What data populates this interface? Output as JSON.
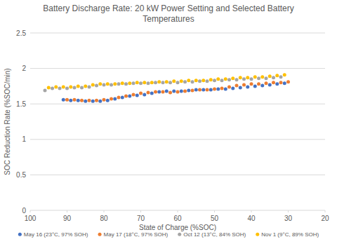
{
  "chart_data": {
    "type": "scatter",
    "title": "Battery Discharge Rate: 20 kW Power Setting and Selected Battery Temperatures",
    "x_label": "State of Charge (%SOC)",
    "y_label": "SOC Reduction Rate (%SOC/min)",
    "xlim": [
      100,
      20
    ],
    "xticks": [
      100,
      90,
      80,
      70,
      60,
      50,
      40,
      30,
      20
    ],
    "ylim": [
      0,
      2.5
    ],
    "yticks": [
      0,
      0.5,
      1,
      1.5,
      2,
      2.5
    ],
    "grid": true,
    "legend": "bottom",
    "marker": "circle",
    "series": [
      {
        "name": "May 16 (23°C, 97% SOH)",
        "color": "#4472c4",
        "x": [
          91,
          89,
          87,
          85,
          83,
          81,
          79,
          77,
          75,
          73,
          71,
          69,
          67,
          65,
          63,
          61,
          59,
          57,
          55,
          53,
          51,
          49,
          47,
          45,
          43,
          41,
          39,
          37,
          35,
          33,
          31
        ],
        "values": [
          1.56,
          1.55,
          1.55,
          1.54,
          1.54,
          1.54,
          1.55,
          1.57,
          1.59,
          1.61,
          1.62,
          1.63,
          1.65,
          1.67,
          1.68,
          1.68,
          1.68,
          1.69,
          1.7,
          1.7,
          1.7,
          1.71,
          1.71,
          1.72,
          1.73,
          1.74,
          1.75,
          1.76,
          1.77,
          1.78,
          1.79
        ]
      },
      {
        "name": "May 17 (18°C, 97% SOH)",
        "color": "#ed7d31",
        "x": [
          90,
          88,
          86,
          84,
          82,
          80,
          78,
          76,
          74,
          72,
          70,
          68,
          66,
          64,
          62,
          60,
          58,
          56,
          54,
          52,
          50,
          48,
          46,
          44,
          42,
          40,
          38,
          36,
          34,
          32,
          30
        ],
        "values": [
          1.56,
          1.56,
          1.55,
          1.55,
          1.55,
          1.56,
          1.57,
          1.59,
          1.61,
          1.63,
          1.65,
          1.66,
          1.67,
          1.67,
          1.66,
          1.67,
          1.68,
          1.69,
          1.7,
          1.7,
          1.71,
          1.72,
          1.74,
          1.76,
          1.77,
          1.78,
          1.78,
          1.79,
          1.8,
          1.8,
          1.81
        ]
      },
      {
        "name": "Oct 12 (13°C, 84% SOH)",
        "color": "#a5a5a5",
        "x": [
          96,
          94,
          92,
          90,
          88,
          86,
          84,
          82,
          80,
          78,
          76,
          74,
          72,
          70,
          68,
          66,
          64,
          62,
          60,
          58,
          56,
          54,
          52,
          50,
          48,
          46,
          44,
          42,
          40,
          38,
          36,
          34,
          32
        ],
        "values": [
          1.69,
          1.72,
          1.72,
          1.72,
          1.73,
          1.73,
          1.74,
          1.76,
          1.77,
          1.77,
          1.78,
          1.78,
          1.79,
          1.79,
          1.79,
          1.8,
          1.8,
          1.8,
          1.8,
          1.81,
          1.81,
          1.82,
          1.82,
          1.83,
          1.83,
          1.84,
          1.84,
          1.85,
          1.85,
          1.86,
          1.86,
          1.87,
          1.88
        ]
      },
      {
        "name": "Nov 1 (9°C, 89% SOH)",
        "color": "#ffc000",
        "x": [
          95,
          93,
          91,
          89,
          87,
          85,
          83,
          81,
          79,
          77,
          75,
          73,
          71,
          69,
          67,
          65,
          63,
          61,
          59,
          57,
          55,
          53,
          51,
          49,
          47,
          45,
          43,
          41,
          39,
          37,
          35,
          33,
          31
        ],
        "values": [
          1.73,
          1.74,
          1.74,
          1.74,
          1.75,
          1.75,
          1.77,
          1.78,
          1.78,
          1.78,
          1.79,
          1.79,
          1.8,
          1.8,
          1.8,
          1.81,
          1.81,
          1.82,
          1.82,
          1.83,
          1.83,
          1.83,
          1.84,
          1.85,
          1.85,
          1.86,
          1.87,
          1.87,
          1.88,
          1.88,
          1.89,
          1.9,
          1.91
        ]
      }
    ]
  }
}
